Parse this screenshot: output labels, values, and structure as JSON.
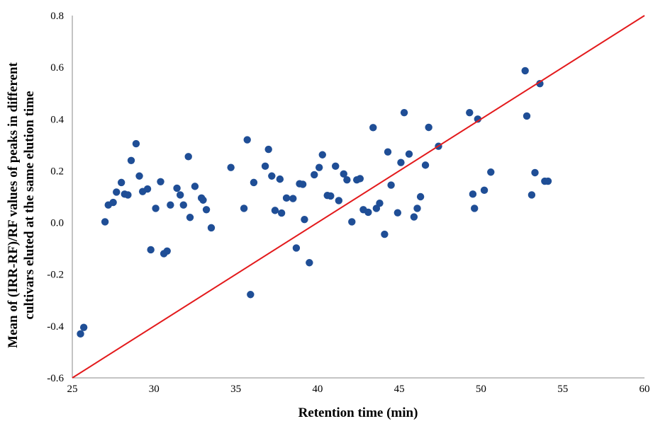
{
  "chart_data": {
    "type": "scatter",
    "title": "",
    "xlabel": "Retention time (min)",
    "ylabel_lines": [
      "Mean of (IRR-RF)/RF values of peaks in different",
      "cultivars eluted at the same elution time"
    ],
    "xlim": [
      25,
      60
    ],
    "ylim": [
      -0.6,
      0.8
    ],
    "x_ticks": [
      25,
      30,
      35,
      40,
      45,
      50,
      55,
      60
    ],
    "y_ticks": [
      -0.6,
      -0.4,
      -0.2,
      0.0,
      0.2,
      0.4,
      0.6,
      0.8
    ],
    "x_tick_labels": [
      "25",
      "30",
      "35",
      "40",
      "45",
      "50",
      "55",
      "60"
    ],
    "y_tick_labels": [
      "-0.6",
      "-0.4",
      "-0.2",
      "0.0",
      "0.2",
      "0.4",
      "0.6",
      "0.8"
    ],
    "grid": false,
    "legend": "none",
    "marker_color": "#1f4e96",
    "line_color": "#e31a1c",
    "reference_line": {
      "x": [
        25,
        60
      ],
      "y": [
        -0.6,
        0.8
      ]
    },
    "series": [
      {
        "points": [
          [
            25.5,
            -0.43
          ],
          [
            25.7,
            -0.405
          ],
          [
            27.0,
            0.003
          ],
          [
            27.2,
            0.068
          ],
          [
            27.5,
            0.078
          ],
          [
            27.7,
            0.118
          ],
          [
            28.0,
            0.155
          ],
          [
            28.2,
            0.11
          ],
          [
            28.4,
            0.107
          ],
          [
            28.6,
            0.24
          ],
          [
            28.9,
            0.305
          ],
          [
            29.1,
            0.18
          ],
          [
            29.3,
            0.12
          ],
          [
            29.6,
            0.13
          ],
          [
            29.8,
            -0.105
          ],
          [
            30.1,
            0.055
          ],
          [
            30.4,
            0.158
          ],
          [
            30.6,
            -0.12
          ],
          [
            30.8,
            -0.11
          ],
          [
            31.0,
            0.068
          ],
          [
            31.4,
            0.133
          ],
          [
            31.6,
            0.107
          ],
          [
            31.8,
            0.068
          ],
          [
            32.1,
            0.255
          ],
          [
            32.2,
            0.02
          ],
          [
            32.5,
            0.14
          ],
          [
            32.9,
            0.095
          ],
          [
            33.0,
            0.087
          ],
          [
            33.2,
            0.05
          ],
          [
            33.5,
            -0.02
          ],
          [
            34.7,
            0.213
          ],
          [
            35.5,
            0.055
          ],
          [
            35.7,
            0.32
          ],
          [
            35.9,
            -0.278
          ],
          [
            36.1,
            0.155
          ],
          [
            36.8,
            0.218
          ],
          [
            37.0,
            0.283
          ],
          [
            37.2,
            0.18
          ],
          [
            37.4,
            0.047
          ],
          [
            37.7,
            0.168
          ],
          [
            37.8,
            0.037
          ],
          [
            38.1,
            0.095
          ],
          [
            38.5,
            0.093
          ],
          [
            38.7,
            -0.098
          ],
          [
            38.9,
            0.15
          ],
          [
            39.1,
            0.148
          ],
          [
            39.2,
            0.012
          ],
          [
            39.5,
            -0.155
          ],
          [
            39.8,
            0.185
          ],
          [
            40.1,
            0.213
          ],
          [
            40.3,
            0.262
          ],
          [
            40.6,
            0.105
          ],
          [
            40.8,
            0.103
          ],
          [
            41.1,
            0.218
          ],
          [
            41.3,
            0.085
          ],
          [
            41.6,
            0.188
          ],
          [
            41.8,
            0.165
          ],
          [
            42.1,
            0.003
          ],
          [
            42.4,
            0.165
          ],
          [
            42.6,
            0.17
          ],
          [
            42.8,
            0.05
          ],
          [
            43.1,
            0.04
          ],
          [
            43.4,
            0.367
          ],
          [
            43.6,
            0.055
          ],
          [
            43.8,
            0.075
          ],
          [
            44.1,
            -0.045
          ],
          [
            44.3,
            0.273
          ],
          [
            44.5,
            0.145
          ],
          [
            44.9,
            0.038
          ],
          [
            45.1,
            0.232
          ],
          [
            45.3,
            0.425
          ],
          [
            45.6,
            0.265
          ],
          [
            45.9,
            0.022
          ],
          [
            46.1,
            0.055
          ],
          [
            46.3,
            0.1
          ],
          [
            46.6,
            0.222
          ],
          [
            46.8,
            0.368
          ],
          [
            47.4,
            0.295
          ],
          [
            49.3,
            0.425
          ],
          [
            49.5,
            0.11
          ],
          [
            49.6,
            0.055
          ],
          [
            49.8,
            0.4
          ],
          [
            50.2,
            0.125
          ],
          [
            50.6,
            0.195
          ],
          [
            52.7,
            0.587
          ],
          [
            52.8,
            0.412
          ],
          [
            53.1,
            0.107
          ],
          [
            53.3,
            0.193
          ],
          [
            53.6,
            0.537
          ],
          [
            53.9,
            0.16
          ],
          [
            54.1,
            0.16
          ]
        ]
      }
    ]
  }
}
